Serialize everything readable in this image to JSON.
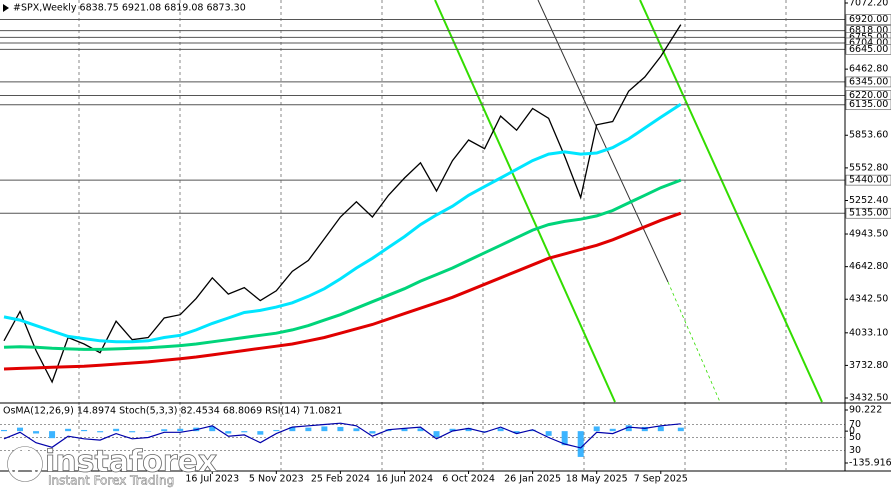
{
  "chart_data": [
    {
      "type": "line",
      "title": "#SPX,Weekly  6838.75 6921.08 6819.08 6873.30",
      "x": [
        "2022-07-17",
        "2022-08-14",
        "2022-09-11",
        "2022-10-09",
        "2022-11-06",
        "2022-12-04",
        "2023-01-01",
        "2023-01-29",
        "2023-02-26",
        "2023-03-26",
        "2023-04-23",
        "2023-05-21",
        "2023-06-18",
        "2023-07-16",
        "2023-08-13",
        "2023-09-10",
        "2023-10-08",
        "2023-11-05",
        "2023-12-03",
        "2023-12-31",
        "2024-01-28",
        "2024-02-25",
        "2024-03-24",
        "2024-04-21",
        "2024-05-19",
        "2024-06-16",
        "2024-07-14",
        "2024-08-11",
        "2024-09-08",
        "2024-10-06",
        "2024-11-03",
        "2024-12-01",
        "2024-12-29",
        "2025-01-26",
        "2025-02-23",
        "2025-03-23",
        "2025-04-20",
        "2025-05-18",
        "2025-06-15",
        "2025-07-13",
        "2025-08-10",
        "2025-09-07",
        "2025-10-12"
      ],
      "series": [
        {
          "color": "#000000",
          "values": [
            3960,
            4230,
            3870,
            3580,
            3990,
            3930,
            3850,
            4140,
            3970,
            3990,
            4170,
            4200,
            4350,
            4540,
            4390,
            4450,
            4330,
            4420,
            4600,
            4700,
            4900,
            5100,
            5240,
            5100,
            5300,
            5460,
            5600,
            5340,
            5620,
            5810,
            5730,
            6030,
            5900,
            6100,
            6010,
            5660,
            5280,
            5950,
            5980,
            6260,
            6390,
            6580,
            6873.3
          ]
        },
        {
          "color": "#00e5ff",
          "values": [
            4180,
            4150,
            4100,
            4050,
            4000,
            3980,
            3960,
            3950,
            3950,
            3960,
            3990,
            4010,
            4060,
            4120,
            4170,
            4220,
            4240,
            4270,
            4310,
            4370,
            4440,
            4530,
            4630,
            4720,
            4820,
            4920,
            5030,
            5120,
            5200,
            5300,
            5380,
            5460,
            5540,
            5620,
            5680,
            5700,
            5680,
            5690,
            5740,
            5820,
            5920,
            6020,
            6140
          ]
        },
        {
          "color": "#00d47a",
          "values": [
            3900,
            3905,
            3900,
            3890,
            3885,
            3880,
            3880,
            3885,
            3890,
            3895,
            3905,
            3915,
            3930,
            3950,
            3970,
            3990,
            4010,
            4030,
            4060,
            4100,
            4150,
            4200,
            4260,
            4320,
            4380,
            4440,
            4510,
            4570,
            4630,
            4700,
            4770,
            4840,
            4910,
            4980,
            5030,
            5060,
            5080,
            5110,
            5160,
            5230,
            5300,
            5370,
            5440
          ]
        },
        {
          "color": "#e00000",
          "values": [
            3700,
            3705,
            3710,
            3715,
            3720,
            3725,
            3735,
            3745,
            3755,
            3765,
            3780,
            3795,
            3810,
            3830,
            3850,
            3870,
            3890,
            3910,
            3930,
            3960,
            3990,
            4030,
            4070,
            4110,
            4160,
            4210,
            4260,
            4310,
            4360,
            4420,
            4480,
            4540,
            4600,
            4660,
            4720,
            4760,
            4800,
            4840,
            4890,
            4950,
            5010,
            5070,
            5135
          ]
        }
      ],
      "xlim": [
        "2022-07-10",
        "2026-07-26"
      ],
      "ylim": [
        3432.5,
        7072.2
      ],
      "yticks": [
        {
          "value": 7072.2,
          "label": "7072.20"
        },
        {
          "value": 6462.8,
          "label": "6462.80"
        },
        {
          "value": 5853.6,
          "label": "5853.60"
        },
        {
          "value": 5552.8,
          "label": "5552.80"
        },
        {
          "value": 5252.4,
          "label": "5252.40"
        },
        {
          "value": 4943.5,
          "label": "4943.50"
        },
        {
          "value": 4642.8,
          "label": "4642.80"
        },
        {
          "value": 4342.5,
          "label": "4342.50"
        },
        {
          "value": 4033.1,
          "label": "4033.10"
        },
        {
          "value": 3732.8,
          "label": "3732.80"
        },
        {
          "value": 3432.5,
          "label": "3432.50"
        }
      ],
      "levels": [
        {
          "value": 6920,
          "label": "6920.00"
        },
        {
          "value": 6818,
          "label": "6818.00"
        },
        {
          "value": 6755,
          "label": "6755.00"
        },
        {
          "value": 6704,
          "label": "6704.00"
        },
        {
          "value": 6645,
          "label": "6645.00"
        },
        {
          "value": 6345,
          "label": "6345.00"
        },
        {
          "value": 6220,
          "label": "6220.00"
        },
        {
          "value": 6135,
          "label": "6135.00"
        },
        {
          "value": 5440,
          "label": "5440.00"
        },
        {
          "value": 5135,
          "label": "5135.00"
        }
      ]
    },
    {
      "type": "bar",
      "title": "OsMA(12,26,9) 14.8974  Stoch(5,3,3) 82.4534 68.8069  RSI(14) 71.0821",
      "x": [
        "2022-07-17",
        "2022-08-14",
        "2022-09-11",
        "2022-10-09",
        "2022-11-06",
        "2022-12-04",
        "2023-01-01",
        "2023-01-29",
        "2023-02-26",
        "2023-03-26",
        "2023-04-23",
        "2023-05-21",
        "2023-06-18",
        "2023-07-16",
        "2023-08-13",
        "2023-09-10",
        "2023-10-08",
        "2023-11-05",
        "2023-12-03",
        "2023-12-31",
        "2024-01-28",
        "2024-02-25",
        "2024-03-24",
        "2024-04-21",
        "2024-05-19",
        "2024-06-16",
        "2024-07-14",
        "2024-08-11",
        "2024-09-08",
        "2024-10-06",
        "2024-11-03",
        "2024-12-01",
        "2024-12-29",
        "2025-01-26",
        "2025-02-23",
        "2025-03-23",
        "2025-04-20",
        "2025-05-18",
        "2025-06-15",
        "2025-07-13",
        "2025-08-10",
        "2025-09-07",
        "2025-10-12"
      ],
      "values": [
        5,
        15,
        -10,
        -30,
        10,
        5,
        -5,
        10,
        -5,
        0,
        8,
        10,
        15,
        20,
        -10,
        -5,
        -15,
        5,
        18,
        15,
        20,
        18,
        12,
        -10,
        8,
        10,
        12,
        -25,
        10,
        14,
        -5,
        12,
        -8,
        6,
        -20,
        -60,
        -110,
        20,
        10,
        25,
        18,
        20,
        14.8974
      ],
      "color": "#3cb4ff",
      "series": [
        {
          "color": "#0000aa",
          "axis": "y2",
          "values": [
            48,
            58,
            42,
            35,
            52,
            48,
            46,
            56,
            48,
            50,
            58,
            58,
            62,
            68,
            52,
            54,
            42,
            56,
            66,
            68,
            70,
            72,
            68,
            52,
            62,
            64,
            66,
            48,
            60,
            64,
            58,
            66,
            56,
            62,
            50,
            40,
            34,
            58,
            56,
            66,
            64,
            68,
            71.0821
          ]
        }
      ],
      "xlim": [
        "2022-07-10",
        "2026-07-26"
      ],
      "ylim": [
        -135.9167,
        90.222
      ],
      "yticks": [
        90.222,
        0,
        -135.9167
      ],
      "y2lim": [
        0,
        100
      ],
      "y2ticks": [
        70,
        50,
        30
      ],
      "xticks": [
        {
          "value": "2023-07-16",
          "label": "16 Jul 2023"
        },
        {
          "value": "2023-11-05",
          "label": "5 Nov 2023"
        },
        {
          "value": "2024-02-25",
          "label": "25 Feb 2024"
        },
        {
          "value": "2024-06-16",
          "label": "16 Jun 2024"
        },
        {
          "value": "2024-10-06",
          "label": "6 Oct 2024"
        },
        {
          "value": "2025-01-26",
          "label": "26 Jan 2025"
        },
        {
          "value": "2025-05-18",
          "label": "18 May 2025"
        },
        {
          "value": "2025-09-07",
          "label": "7 Sep 2025"
        }
      ]
    }
  ],
  "branding": {
    "name": "instaforex",
    "tagline": "Instant Forex Trading"
  }
}
